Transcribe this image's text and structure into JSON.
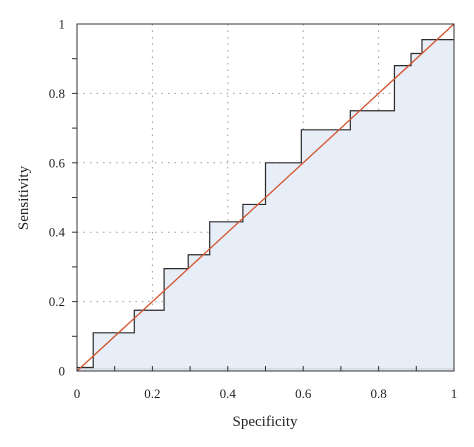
{
  "chart_data": {
    "type": "line",
    "title": "",
    "xlabel": "Specificity",
    "ylabel": "Sensitivity",
    "xlim": [
      0,
      1
    ],
    "ylim": [
      0,
      1
    ],
    "x_ticks": [
      0,
      0.2,
      0.4,
      0.6,
      0.8,
      1
    ],
    "y_ticks": [
      0,
      0.2,
      0.4,
      0.6,
      0.8,
      1
    ],
    "x_tick_labels": [
      "0",
      "0.2",
      "0.4",
      "0.6",
      "0.8",
      "1"
    ],
    "y_tick_labels": [
      "0",
      "0.2",
      "0.4",
      "0.6",
      "0.8",
      "1"
    ],
    "grid": true,
    "grid_style": "dotted",
    "series": [
      {
        "style": "step",
        "fill": "area-under",
        "color": "#2b2b2b",
        "fill_color": "#e8eef8",
        "x": [
          0,
          0.043,
          0.043,
          0.152,
          0.152,
          0.231,
          0.231,
          0.295,
          0.295,
          0.352,
          0.352,
          0.44,
          0.44,
          0.5,
          0.5,
          0.595,
          0.595,
          0.725,
          0.725,
          0.842,
          0.842,
          0.886,
          0.886,
          0.915,
          0.915,
          0.943,
          0.943,
          1.0
        ],
        "y": [
          0.01,
          0.01,
          0.11,
          0.11,
          0.175,
          0.175,
          0.295,
          0.295,
          0.335,
          0.335,
          0.43,
          0.43,
          0.48,
          0.48,
          0.6,
          0.6,
          0.695,
          0.695,
          0.75,
          0.75,
          0.88,
          0.88,
          0.915,
          0.915,
          0.955,
          0.955,
          0.955,
          0.955
        ]
      },
      {
        "style": "line",
        "color": "#d2542c",
        "x": [
          0,
          1
        ],
        "y": [
          0,
          1
        ]
      }
    ]
  }
}
